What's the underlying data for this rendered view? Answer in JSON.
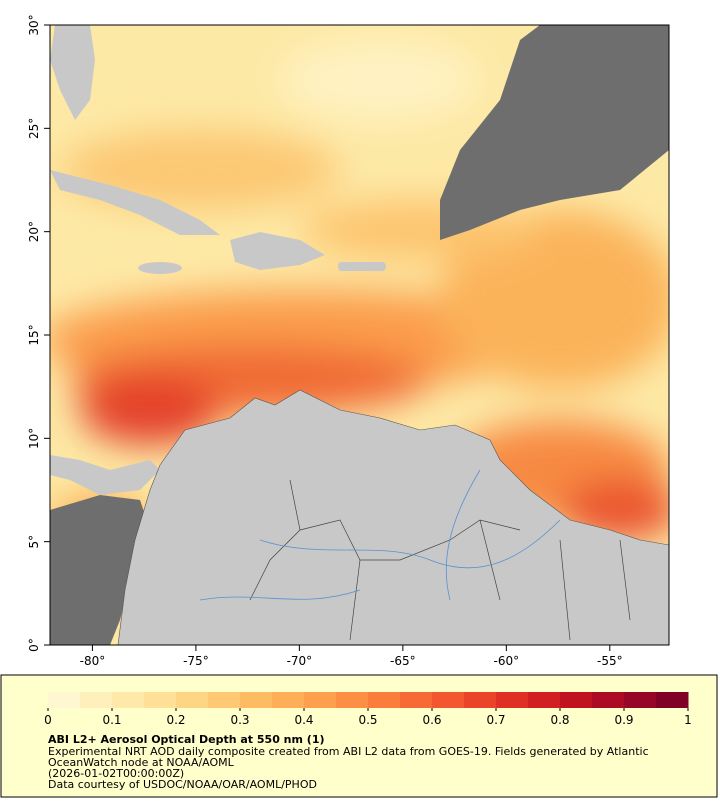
{
  "map": {
    "xlim": [
      -82.05,
      -52.14
    ],
    "ylim": [
      0,
      30
    ],
    "xticks": [
      {
        "value": -80,
        "label": "-80°"
      },
      {
        "value": -75,
        "label": "-75°"
      },
      {
        "value": -70,
        "label": "-70°"
      },
      {
        "value": -65,
        "label": "-65°"
      },
      {
        "value": -60,
        "label": "-60°"
      },
      {
        "value": -55,
        "label": "-55°"
      }
    ],
    "yticks": [
      {
        "value": 0,
        "label": "0°"
      },
      {
        "value": 5,
        "label": "5°"
      },
      {
        "value": 10,
        "label": "10°"
      },
      {
        "value": 15,
        "label": "15°"
      },
      {
        "value": 20,
        "label": "20°"
      },
      {
        "value": 25,
        "label": "25°"
      },
      {
        "value": 30,
        "label": "30°"
      }
    ]
  },
  "colorbar": {
    "range": [
      0,
      1
    ],
    "ticks": [
      0,
      0.1,
      0.2,
      0.3,
      0.4,
      0.5,
      0.6,
      0.7,
      0.8,
      0.9,
      1
    ],
    "colors": [
      "#fff7cf",
      "#fff0bb",
      "#ffe9a8",
      "#ffe096",
      "#fed584",
      "#fec972",
      "#febc62",
      "#fdae56",
      "#fd9f4c",
      "#fc8f43",
      "#fb7d3c",
      "#f86a35",
      "#f2572f",
      "#ea432a",
      "#df3025",
      "#d21f22",
      "#c1121f",
      "#ad0a24",
      "#970527",
      "#800026"
    ]
  },
  "caption": {
    "title": "ABI L2+ Aerosol Optical Depth at 550 nm (1)",
    "lines": [
      "Experimental NRT AOD daily composite created from ABI L2 data from GOES-19. Fields generated by Atlantic",
      "OceanWatch node at NOAA/AOML",
      "(2026-01-02T00:00:00Z)",
      "Data courtesy of USDOC/NOAA/OAR/AOML/PHOD"
    ]
  }
}
